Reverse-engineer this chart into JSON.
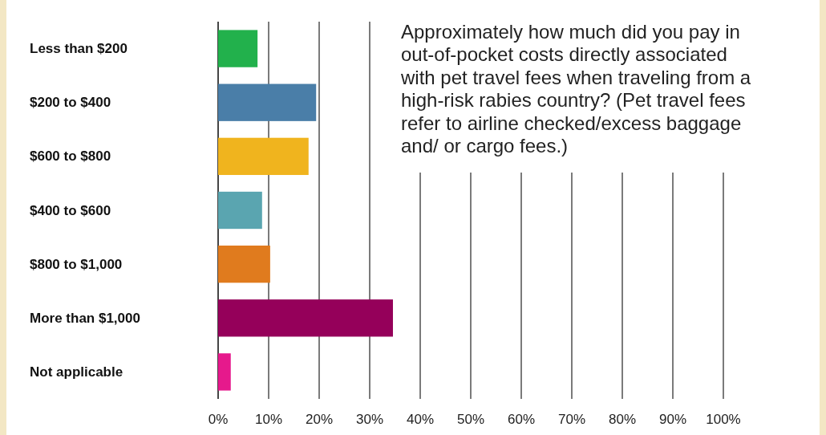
{
  "chart_data": {
    "type": "bar",
    "orientation": "horizontal",
    "title": "Approximately how much did you pay in out-of-pocket costs directly associated with pet travel fees when traveling from a high-risk rabies country? (Pet travel fees refer to airline checked/excess baggage and/ or cargo fees.)",
    "categories": [
      "Less than $200",
      "$200 to $400",
      "$600 to $800",
      "$400 to $600",
      "$800 to $1,000",
      "More than $1,000",
      "Not applicable"
    ],
    "values": [
      7.8,
      19.4,
      17.9,
      8.7,
      10.3,
      34.6,
      2.5
    ],
    "colors": [
      "#22b14c",
      "#4a7ea8",
      "#f0b41e",
      "#5aa5b0",
      "#e07b1e",
      "#95005a",
      "#e6198c"
    ],
    "xlim": [
      0,
      100
    ],
    "xticks": [
      {
        "value": 0,
        "label": "0%"
      },
      {
        "value": 10,
        "label": "10%"
      },
      {
        "value": 20,
        "label": "20%"
      },
      {
        "value": 30,
        "label": "30%"
      },
      {
        "value": 40,
        "label": "40%"
      },
      {
        "value": 50,
        "label": "50%"
      },
      {
        "value": 60,
        "label": "60%"
      },
      {
        "value": 70,
        "label": "70%"
      },
      {
        "value": 80,
        "label": "80%"
      },
      {
        "value": 90,
        "label": "90%"
      },
      {
        "value": 100,
        "label": "100%"
      }
    ],
    "grid": "x"
  }
}
